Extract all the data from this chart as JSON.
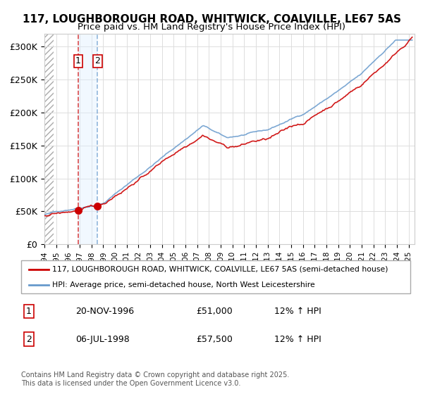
{
  "title_line1": "117, LOUGHBOROUGH ROAD, WHITWICK, COALVILLE, LE67 5AS",
  "title_line2": "Price paid vs. HM Land Registry's House Price Index (HPI)",
  "ylabel_ticks": [
    "£0",
    "£50K",
    "£100K",
    "£150K",
    "£200K",
    "£250K",
    "£300K"
  ],
  "ytick_values": [
    0,
    50000,
    100000,
    150000,
    200000,
    250000,
    300000
  ],
  "ylim": [
    0,
    320000
  ],
  "xlim_start": 1994.0,
  "xlim_end": 2025.5,
  "legend_line1": "117, LOUGHBOROUGH ROAD, WHITWICK, COALVILLE, LE67 5AS (semi-detached house)",
  "legend_line2": "HPI: Average price, semi-detached house, North West Leicestershire",
  "sale1_date": "20-NOV-1996",
  "sale1_price": "£51,000",
  "sale1_hpi": "12% ↑ HPI",
  "sale1_year": 1996.88,
  "sale1_value": 51000,
  "sale2_date": "06-JUL-1998",
  "sale2_price": "£57,500",
  "sale2_hpi": "12% ↑ HPI",
  "sale2_year": 1998.51,
  "sale2_value": 57500,
  "footnote": "Contains HM Land Registry data © Crown copyright and database right 2025.\nThis data is licensed under the Open Government Licence v3.0.",
  "hatch_color": "#cccccc",
  "sale_dot_color": "#cc0000",
  "hpi_line_color": "#6699cc",
  "price_line_color": "#cc0000",
  "background_color": "#ffffff",
  "plot_bg_color": "#ffffff",
  "hatch_end_year": 1994.75
}
